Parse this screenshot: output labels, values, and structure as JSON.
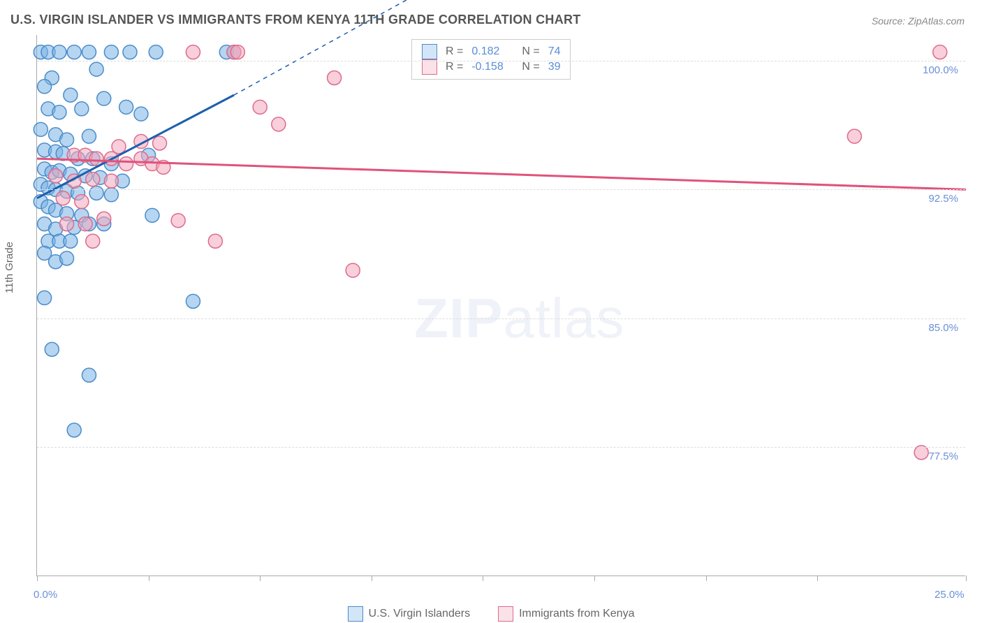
{
  "title": "U.S. VIRGIN ISLANDER VS IMMIGRANTS FROM KENYA 11TH GRADE CORRELATION CHART",
  "source_prefix": "Source: ",
  "source_name": "ZipAtlas.com",
  "ylabel": "11th Grade",
  "watermark": {
    "bold": "ZIP",
    "thin": "atlas"
  },
  "chart": {
    "type": "scatter",
    "xlim": [
      0,
      25
    ],
    "ylim": [
      70,
      101.5
    ],
    "background_color": "#ffffff",
    "grid_color": "#dddddd",
    "ytick_values": [
      77.5,
      85.0,
      92.5,
      100.0
    ],
    "ytick_labels": [
      "77.5%",
      "85.0%",
      "92.5%",
      "100.0%"
    ],
    "xtick_values": [
      0,
      3,
      6,
      9,
      12,
      15,
      18,
      21,
      25
    ],
    "xtick_labels": {
      "0": "0.0%",
      "25": "25.0%"
    },
    "marker_radius": 10,
    "marker_opacity": 0.55,
    "series": [
      {
        "id": "usvi",
        "name": "U.S. Virgin Islanders",
        "color": "#7ab3e6",
        "stroke": "#4a8cc9",
        "R": "0.182",
        "N": "74",
        "trend": {
          "x1": 0,
          "y1": 92.0,
          "x2": 5.3,
          "y2": 98.0,
          "dash_x2": 10.0,
          "dash_y2": 103.6,
          "color": "#1d5fad",
          "width": 3
        },
        "points": [
          [
            0.1,
            100.5
          ],
          [
            0.3,
            100.5
          ],
          [
            0.6,
            100.5
          ],
          [
            1.0,
            100.5
          ],
          [
            1.4,
            100.5
          ],
          [
            2.0,
            100.5
          ],
          [
            2.5,
            100.5
          ],
          [
            3.2,
            100.5
          ],
          [
            5.1,
            100.5
          ],
          [
            5.3,
            100.5
          ],
          [
            0.4,
            99.0
          ],
          [
            1.6,
            99.5
          ],
          [
            0.2,
            98.5
          ],
          [
            0.9,
            98.0
          ],
          [
            1.8,
            97.8
          ],
          [
            0.3,
            97.2
          ],
          [
            0.6,
            97.0
          ],
          [
            1.2,
            97.2
          ],
          [
            2.4,
            97.3
          ],
          [
            2.8,
            96.9
          ],
          [
            0.1,
            96.0
          ],
          [
            0.5,
            95.7
          ],
          [
            0.8,
            95.4
          ],
          [
            1.4,
            95.6
          ],
          [
            0.2,
            94.8
          ],
          [
            0.5,
            94.7
          ],
          [
            0.7,
            94.6
          ],
          [
            1.1,
            94.3
          ],
          [
            1.5,
            94.3
          ],
          [
            2.0,
            94.0
          ],
          [
            3.0,
            94.5
          ],
          [
            0.2,
            93.7
          ],
          [
            0.4,
            93.5
          ],
          [
            0.6,
            93.6
          ],
          [
            0.9,
            93.4
          ],
          [
            1.3,
            93.3
          ],
          [
            1.7,
            93.2
          ],
          [
            2.3,
            93.0
          ],
          [
            0.1,
            92.8
          ],
          [
            0.3,
            92.6
          ],
          [
            0.5,
            92.5
          ],
          [
            0.8,
            92.4
          ],
          [
            1.1,
            92.3
          ],
          [
            1.6,
            92.3
          ],
          [
            2.0,
            92.2
          ],
          [
            0.1,
            91.8
          ],
          [
            0.3,
            91.5
          ],
          [
            0.5,
            91.3
          ],
          [
            0.8,
            91.1
          ],
          [
            1.2,
            91.0
          ],
          [
            0.2,
            90.5
          ],
          [
            0.5,
            90.2
          ],
          [
            1.0,
            90.3
          ],
          [
            1.4,
            90.5
          ],
          [
            1.8,
            90.5
          ],
          [
            3.1,
            91.0
          ],
          [
            0.3,
            89.5
          ],
          [
            0.6,
            89.5
          ],
          [
            0.9,
            89.5
          ],
          [
            0.2,
            88.8
          ],
          [
            0.5,
            88.3
          ],
          [
            0.8,
            88.5
          ],
          [
            4.2,
            86.0
          ],
          [
            0.2,
            86.2
          ],
          [
            0.4,
            83.2
          ],
          [
            1.4,
            81.7
          ],
          [
            1.0,
            78.5
          ]
        ]
      },
      {
        "id": "kenya",
        "name": "Immigrants from Kenya",
        "color": "#f2a8bb",
        "stroke": "#de6b8b",
        "R": "-0.158",
        "N": "39",
        "trend": {
          "x1": 0,
          "y1": 94.3,
          "x2": 25,
          "y2": 92.5,
          "color": "#e0527c",
          "width": 3
        },
        "points": [
          [
            4.2,
            100.5
          ],
          [
            5.3,
            100.5
          ],
          [
            5.4,
            100.5
          ],
          [
            24.3,
            100.5
          ],
          [
            8.0,
            99.0
          ],
          [
            6.0,
            97.3
          ],
          [
            6.5,
            96.3
          ],
          [
            1.0,
            94.5
          ],
          [
            1.3,
            94.5
          ],
          [
            1.6,
            94.3
          ],
          [
            2.0,
            94.3
          ],
          [
            2.4,
            94.0
          ],
          [
            2.8,
            94.3
          ],
          [
            3.1,
            94.0
          ],
          [
            3.4,
            93.8
          ],
          [
            2.2,
            95.0
          ],
          [
            2.8,
            95.3
          ],
          [
            3.3,
            95.2
          ],
          [
            0.5,
            93.3
          ],
          [
            1.0,
            93.0
          ],
          [
            1.5,
            93.1
          ],
          [
            2.0,
            93.0
          ],
          [
            0.7,
            92.0
          ],
          [
            1.2,
            91.8
          ],
          [
            0.8,
            90.5
          ],
          [
            1.3,
            90.5
          ],
          [
            1.8,
            90.8
          ],
          [
            3.8,
            90.7
          ],
          [
            1.5,
            89.5
          ],
          [
            4.8,
            89.5
          ],
          [
            8.5,
            87.8
          ],
          [
            22.0,
            95.6
          ],
          [
            23.8,
            77.2
          ]
        ]
      }
    ]
  },
  "legend": {
    "r_label": "R = ",
    "n_label": "N = "
  }
}
